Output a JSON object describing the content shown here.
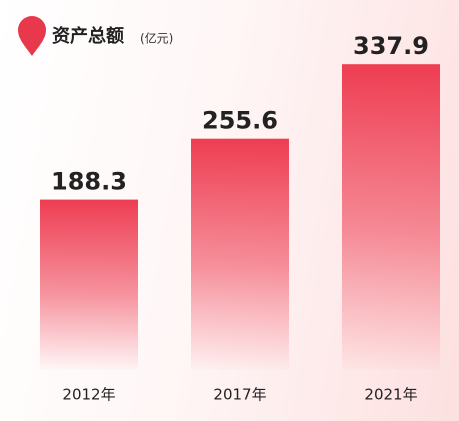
{
  "chart_data": {
    "type": "bar",
    "title": "资产总额",
    "unit": "(亿元)",
    "categories": [
      "2012年",
      "2017年",
      "2021年"
    ],
    "values": [
      188.3,
      255.6,
      337.9
    ],
    "color": "#ee3d52"
  }
}
